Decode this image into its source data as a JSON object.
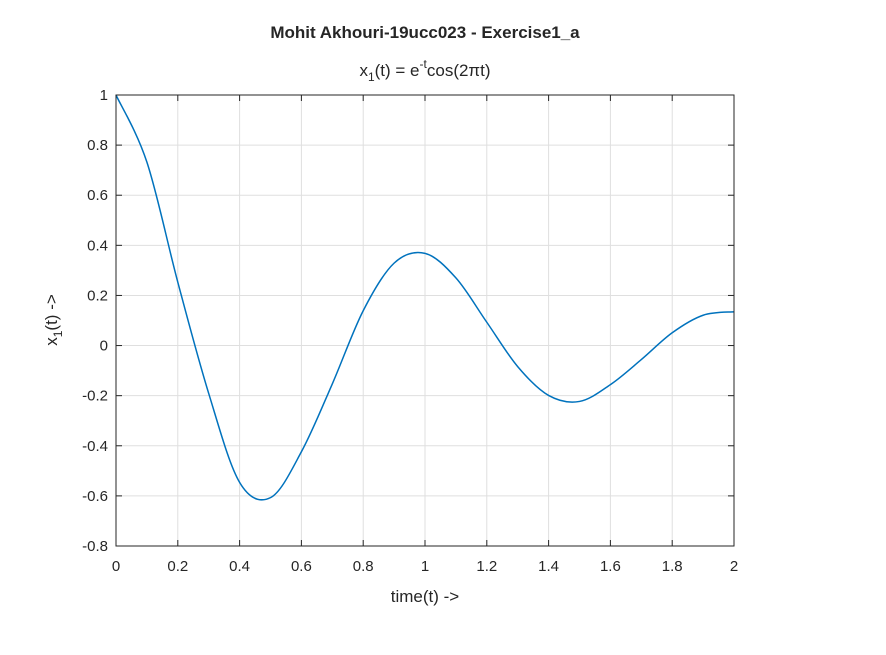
{
  "chart_data": {
    "type": "line",
    "title": "Mohit Akhouri-19ucc023 - Exercise1_a",
    "subtitle": {
      "lhs_base": "x",
      "lhs_sub": "1",
      "lhs_tail": "(t) = e",
      "exp": "-t",
      "rhs": "cos(2πt)"
    },
    "xlabel": "time(t) ->",
    "ylabel": {
      "base": "x",
      "sub": "1",
      "tail": "(t) ->"
    },
    "xlim": [
      0,
      2
    ],
    "ylim": [
      -0.8,
      1
    ],
    "xticks": [
      0,
      0.2,
      0.4,
      0.6,
      0.8,
      1,
      1.2,
      1.4,
      1.6,
      1.8,
      2
    ],
    "xtick_labels": [
      "0",
      "0.2",
      "0.4",
      "0.6",
      "0.8",
      "1",
      "1.2",
      "1.4",
      "1.6",
      "1.8",
      "2"
    ],
    "yticks": [
      -0.8,
      -0.6,
      -0.4,
      -0.2,
      0,
      0.2,
      0.4,
      0.6,
      0.8,
      1
    ],
    "ytick_labels": [
      "-0.8",
      "-0.6",
      "-0.4",
      "-0.2",
      "0",
      "0.2",
      "0.4",
      "0.6",
      "0.8",
      "1"
    ],
    "grid": true,
    "series": [
      {
        "color": "#0072BD",
        "x": [
          0,
          0.1,
          0.2,
          0.3,
          0.4,
          0.5,
          0.6,
          0.7,
          0.8,
          0.9,
          1.0,
          1.1,
          1.2,
          1.3,
          1.4,
          1.5,
          1.6,
          1.7,
          1.8,
          1.9,
          2.0
        ],
        "y": [
          1.0,
          0.732,
          0.253,
          -0.191,
          -0.546,
          -0.607,
          -0.424,
          -0.153,
          0.139,
          0.329,
          0.368,
          0.27,
          0.093,
          -0.084,
          -0.199,
          -0.223,
          -0.156,
          -0.056,
          0.051,
          0.121,
          0.135
        ]
      }
    ]
  }
}
